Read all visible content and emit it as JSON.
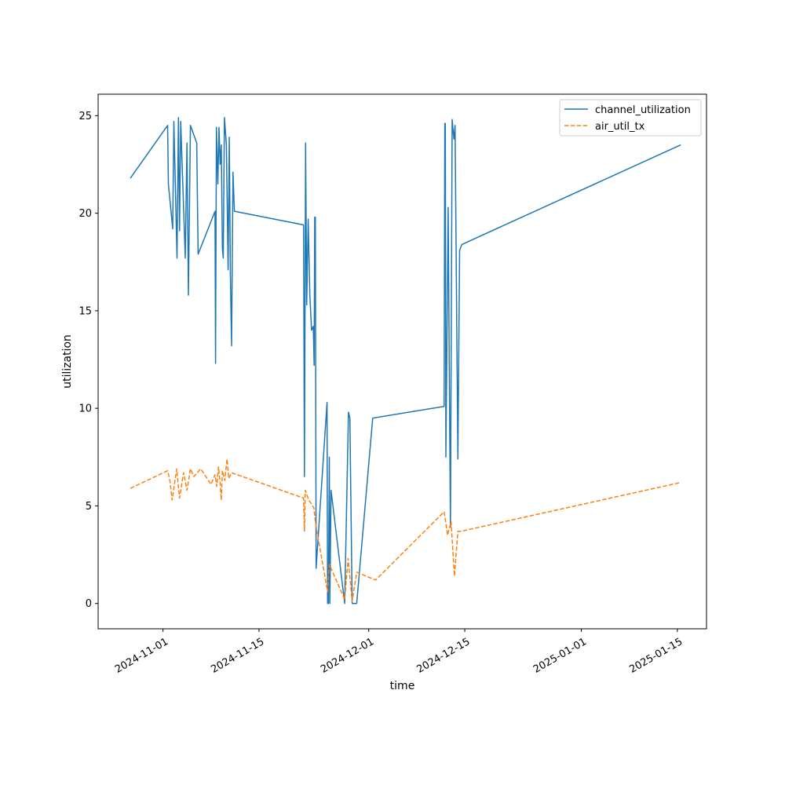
{
  "chart_data": {
    "type": "line",
    "title": "",
    "xlabel": "time",
    "ylabel": "utilization",
    "x_ticks": [
      "2024-11-01",
      "2024-11-15",
      "2024-12-01",
      "2024-12-15",
      "2025-01-01",
      "2025-01-15"
    ],
    "y_ticks": [
      0,
      5,
      10,
      15,
      20,
      25
    ],
    "xlim": [
      "2024-10-22T13:00",
      "2025-01-19T06:00"
    ],
    "ylim": [
      -1.3,
      26.1
    ],
    "grid": false,
    "legend_position": "top-right",
    "series": [
      {
        "name": "channel_utilization",
        "color": "#1f77b4",
        "style": "solid",
        "points": [
          [
            "2024-10-27T06:00",
            21.8
          ],
          [
            "2024-11-01T16:00",
            24.5
          ],
          [
            "2024-11-01T19:00",
            21.5
          ],
          [
            "2024-11-02T10:00",
            19.2
          ],
          [
            "2024-11-02T14:00",
            24.7
          ],
          [
            "2024-11-03T01:00",
            17.7
          ],
          [
            "2024-11-03T06:00",
            24.9
          ],
          [
            "2024-11-03T10:00",
            19.1
          ],
          [
            "2024-11-03T14:00",
            24.7
          ],
          [
            "2024-11-04T06:00",
            17.7
          ],
          [
            "2024-11-04T12:00",
            23.6
          ],
          [
            "2024-11-04T17:00",
            15.8
          ],
          [
            "2024-11-05T00:00",
            24.5
          ],
          [
            "2024-11-05T22:00",
            23.6
          ],
          [
            "2024-11-06T03:00",
            17.9
          ],
          [
            "2024-11-08T14:00",
            20.1
          ],
          [
            "2024-11-08T16:00",
            12.3
          ],
          [
            "2024-11-08T19:00",
            24.4
          ],
          [
            "2024-11-09T00:00",
            21.5
          ],
          [
            "2024-11-09T04:00",
            24.4
          ],
          [
            "2024-11-09T08:00",
            22.5
          ],
          [
            "2024-11-09T12:00",
            23.5
          ],
          [
            "2024-11-09T16:00",
            18.2
          ],
          [
            "2024-11-09T19:00",
            17.7
          ],
          [
            "2024-11-09T23:00",
            24.9
          ],
          [
            "2024-11-10T06:00",
            23.5
          ],
          [
            "2024-11-10T12:00",
            17.1
          ],
          [
            "2024-11-10T16:00",
            23.9
          ],
          [
            "2024-11-10T20:00",
            16.8
          ],
          [
            "2024-11-11T00:00",
            13.2
          ],
          [
            "2024-11-11T05:00",
            22.1
          ],
          [
            "2024-11-11T10:00",
            20.1
          ],
          [
            "2024-11-21T12:00",
            19.4
          ],
          [
            "2024-11-21T15:00",
            6.5
          ],
          [
            "2024-11-21T19:00",
            23.6
          ],
          [
            "2024-11-21T23:00",
            15.3
          ],
          [
            "2024-11-22T04:00",
            19.7
          ],
          [
            "2024-11-22T10:00",
            15.8
          ],
          [
            "2024-11-22T16:00",
            14.0
          ],
          [
            "2024-11-22T22:00",
            14.2
          ],
          [
            "2024-11-23T01:00",
            12.2
          ],
          [
            "2024-11-23T03:00",
            19.8
          ],
          [
            "2024-11-23T05:00",
            19.8
          ],
          [
            "2024-11-23T08:00",
            1.8
          ],
          [
            "2024-11-24T22:00",
            10.3
          ],
          [
            "2024-11-25T00:00",
            0.0
          ],
          [
            "2024-11-25T03:00",
            0.0
          ],
          [
            "2024-11-25T06:00",
            7.5
          ],
          [
            "2024-11-25T08:00",
            0.0
          ],
          [
            "2024-11-25T12:00",
            5.8
          ],
          [
            "2024-11-27T12:00",
            0.0
          ],
          [
            "2024-11-28T01:00",
            9.8
          ],
          [
            "2024-11-28T06:00",
            9.5
          ],
          [
            "2024-11-28T14:00",
            0.0
          ],
          [
            "2024-11-29T06:00",
            0.0
          ],
          [
            "2024-12-01T14:00",
            9.5
          ],
          [
            "2024-12-12T00:00",
            10.1
          ],
          [
            "2024-12-12T02:00",
            24.6
          ],
          [
            "2024-12-12T04:00",
            24.6
          ],
          [
            "2024-12-12T06:00",
            7.5
          ],
          [
            "2024-12-12T14:00",
            20.3
          ],
          [
            "2024-12-12T22:00",
            3.9
          ],
          [
            "2024-12-13T04:00",
            24.8
          ],
          [
            "2024-12-13T10:00",
            23.8
          ],
          [
            "2024-12-13T14:00",
            24.5
          ],
          [
            "2024-12-14T00:00",
            7.4
          ],
          [
            "2024-12-14T06:00",
            18.1
          ],
          [
            "2024-12-14T14:00",
            18.4
          ],
          [
            "2025-01-15T12:00",
            23.5
          ]
        ]
      },
      {
        "name": "air_util_tx",
        "color": "#ff7f0e",
        "style": "dashed",
        "points": [
          [
            "2024-10-27T06:00",
            5.9
          ],
          [
            "2024-11-01T16:00",
            6.8
          ],
          [
            "2024-11-02T00:00",
            6.3
          ],
          [
            "2024-11-02T08:00",
            5.3
          ],
          [
            "2024-11-03T00:00",
            6.9
          ],
          [
            "2024-11-03T10:00",
            5.4
          ],
          [
            "2024-11-04T00:00",
            6.7
          ],
          [
            "2024-11-04T12:00",
            5.8
          ],
          [
            "2024-11-05T00:00",
            6.9
          ],
          [
            "2024-11-05T12:00",
            6.5
          ],
          [
            "2024-11-06T12:00",
            6.9
          ],
          [
            "2024-11-08T00:00",
            6.1
          ],
          [
            "2024-11-08T14:00",
            6.6
          ],
          [
            "2024-11-08T20:00",
            6.0
          ],
          [
            "2024-11-09T02:00",
            7.0
          ],
          [
            "2024-11-09T08:00",
            6.2
          ],
          [
            "2024-11-09T12:00",
            5.3
          ],
          [
            "2024-11-09T16:00",
            6.8
          ],
          [
            "2024-11-10T00:00",
            6.3
          ],
          [
            "2024-11-10T08:00",
            7.4
          ],
          [
            "2024-11-10T14:00",
            6.4
          ],
          [
            "2024-11-11T00:00",
            6.7
          ],
          [
            "2024-11-21T12:00",
            5.4
          ],
          [
            "2024-11-21T15:00",
            3.7
          ],
          [
            "2024-11-21T18:00",
            5.8
          ],
          [
            "2024-11-22T06:00",
            5.3
          ],
          [
            "2024-11-23T00:00",
            4.9
          ],
          [
            "2024-11-23T06:00",
            4.1
          ],
          [
            "2024-11-25T00:00",
            0.6
          ],
          [
            "2024-11-25T06:00",
            2.0
          ],
          [
            "2024-11-27T12:00",
            0.2
          ],
          [
            "2024-11-28T00:00",
            2.3
          ],
          [
            "2024-11-28T14:00",
            0.1
          ],
          [
            "2024-11-29T06:00",
            1.6
          ],
          [
            "2024-12-02T00:00",
            1.2
          ],
          [
            "2024-12-12T00:00",
            4.7
          ],
          [
            "2024-12-12T12:00",
            3.5
          ],
          [
            "2024-12-13T00:00",
            4.2
          ],
          [
            "2024-12-13T12:00",
            1.4
          ],
          [
            "2024-12-14T00:00",
            3.7
          ],
          [
            "2024-12-14T12:00",
            3.7
          ],
          [
            "2025-01-15T12:00",
            6.2
          ]
        ]
      }
    ]
  }
}
